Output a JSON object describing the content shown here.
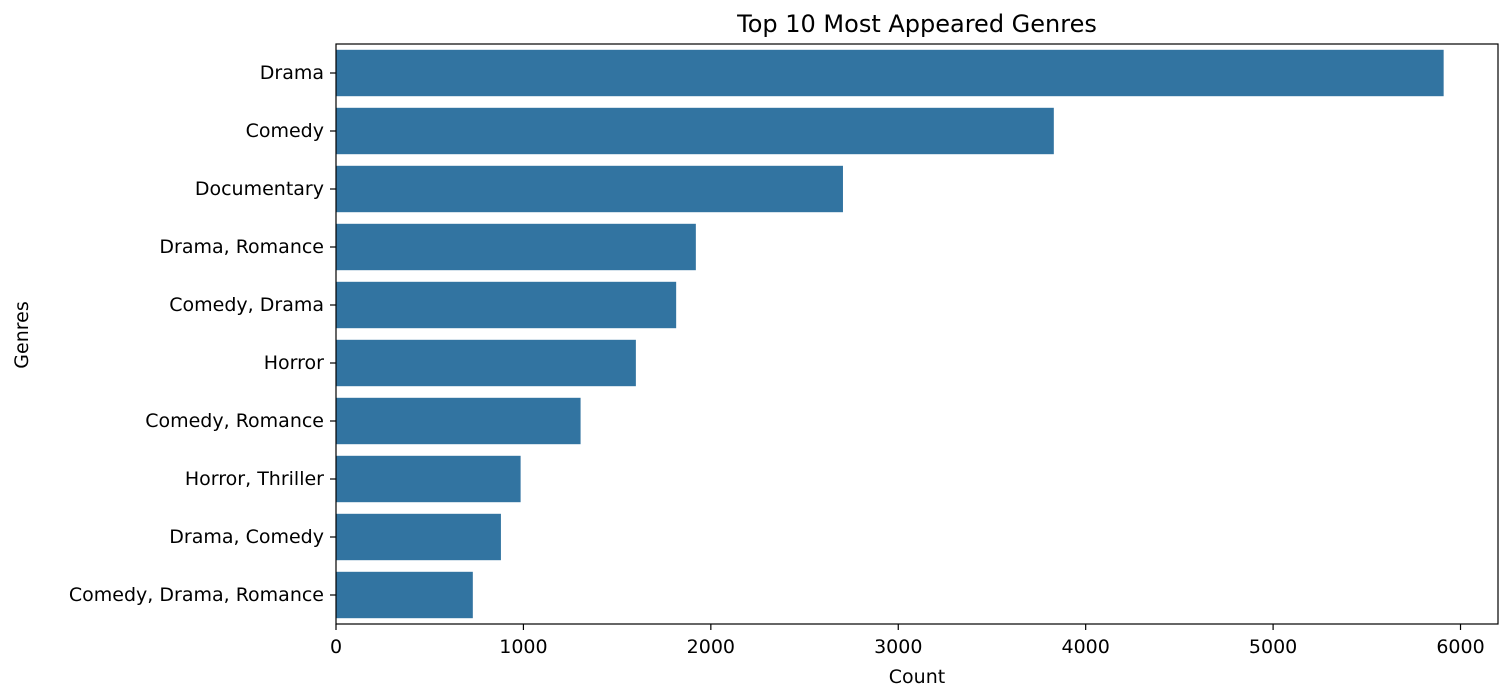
{
  "chart_data": {
    "type": "bar",
    "orientation": "horizontal",
    "title": "Top 10 Most Appeared Genres",
    "xlabel": "Count",
    "ylabel": "Genres",
    "categories": [
      "Drama",
      "Comedy",
      "Documentary",
      "Drama, Romance",
      "Comedy, Drama",
      "Horror",
      "Comedy, Romance",
      "Horror, Thriller",
      "Drama, Comedy",
      "Comedy, Drama, Romance"
    ],
    "values": [
      5910,
      3830,
      2705,
      1920,
      1815,
      1600,
      1305,
      985,
      880,
      730
    ],
    "xlim": [
      0,
      6200
    ],
    "xticks": [
      0,
      1000,
      2000,
      3000,
      4000,
      5000,
      6000
    ],
    "xtick_labels": [
      "0",
      "1000",
      "2000",
      "3000",
      "4000",
      "5000",
      "6000"
    ],
    "grid": false,
    "bar_color": "#3274a1"
  }
}
